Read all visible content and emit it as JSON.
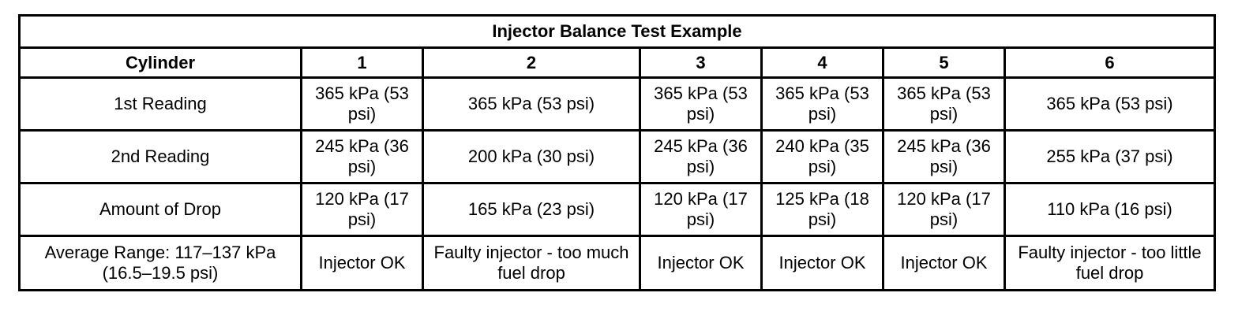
{
  "title": "Injector Balance Test Example",
  "header": {
    "label": "Cylinder",
    "cylinders": [
      "1",
      "2",
      "3",
      "4",
      "5",
      "6"
    ]
  },
  "rows": [
    {
      "label": "1st Reading",
      "values": [
        "365 kPa (53 psi)",
        "365 kPa (53 psi)",
        "365 kPa (53 psi)",
        "365 kPa (53 psi)",
        "365 kPa (53 psi)",
        "365 kPa (53 psi)"
      ]
    },
    {
      "label": "2nd Reading",
      "values": [
        "245 kPa (36 psi)",
        "200 kPa (30 psi)",
        "245 kPa (36 psi)",
        "240 kPa (35 psi)",
        "245 kPa (36 psi)",
        "255 kPa (37 psi)"
      ]
    },
    {
      "label": "Amount of Drop",
      "values": [
        "120 kPa (17 psi)",
        "165 kPa (23 psi)",
        "120 kPa (17 psi)",
        "125 kPa (18 psi)",
        "120 kPa (17 psi)",
        "110 kPa (16 psi)"
      ]
    },
    {
      "label": "Average Range: 117–137 kPa (16.5–19.5 psi)",
      "values": [
        "Injector OK",
        "Faulty injector - too much fuel drop",
        "Injector OK",
        "Injector OK",
        "Injector OK",
        "Faulty injector - too little fuel drop"
      ]
    }
  ]
}
